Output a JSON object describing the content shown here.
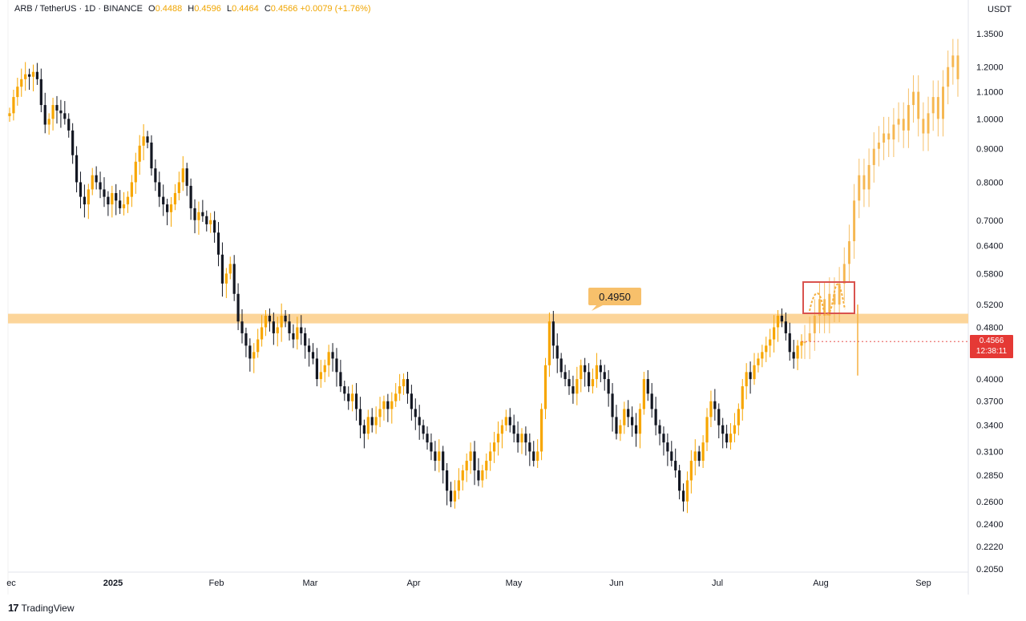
{
  "header": {
    "symbol": "ARB / TetherUS · 1D · BINANCE",
    "open_label": "O",
    "open": "0.4488",
    "high_label": "H",
    "high": "0.4596",
    "low_label": "L",
    "low": "0.4464",
    "close_label": "C",
    "close": "0.4566",
    "change": "+0.0079 (+1.76%)"
  },
  "price_axis": {
    "unit": "USDT",
    "current_price": "0.4566",
    "countdown": "12:38:11"
  },
  "footer": {
    "brand": "TradingView"
  },
  "colors": {
    "candle_up": "#f7a600",
    "candle_down": "#131722",
    "projection": "#f5b041",
    "resistance_band": "#fcd59a",
    "label_bg": "#f7c06b",
    "badge_red": "#e53935",
    "box_red": "#d9534f"
  },
  "chart_data": {
    "type": "candlestick",
    "scale": "log",
    "ylim": [
      0.2,
      1.4
    ],
    "yticks": [
      "1.3500",
      "1.2000",
      "1.1000",
      "1.0000",
      "0.9000",
      "0.8000",
      "0.7000",
      "0.6400",
      "0.5800",
      "0.5200",
      "0.4800",
      "0.4000",
      "0.3700",
      "0.3400",
      "0.3100",
      "0.2850",
      "0.2600",
      "0.2400",
      "0.2220",
      "0.2050"
    ],
    "xticks": [
      "ec",
      "2025",
      "Feb",
      "Mar",
      "Apr",
      "May",
      "Jun",
      "Jul",
      "Aug",
      "Sep"
    ],
    "resistance": {
      "value": 0.495,
      "label": "0.4950"
    },
    "closes": [
      1.02,
      1.08,
      1.12,
      1.15,
      1.17,
      1.16,
      1.18,
      1.15,
      1.05,
      0.98,
      1.0,
      1.05,
      1.03,
      1.02,
      1.0,
      0.96,
      0.88,
      0.8,
      0.76,
      0.74,
      0.78,
      0.82,
      0.8,
      0.78,
      0.76,
      0.74,
      0.77,
      0.75,
      0.73,
      0.74,
      0.76,
      0.8,
      0.86,
      0.91,
      0.94,
      0.92,
      0.84,
      0.8,
      0.76,
      0.74,
      0.72,
      0.74,
      0.77,
      0.8,
      0.84,
      0.79,
      0.73,
      0.7,
      0.72,
      0.71,
      0.69,
      0.7,
      0.67,
      0.62,
      0.56,
      0.58,
      0.6,
      0.54,
      0.49,
      0.47,
      0.45,
      0.43,
      0.44,
      0.46,
      0.48,
      0.5,
      0.49,
      0.47,
      0.48,
      0.5,
      0.49,
      0.47,
      0.46,
      0.48,
      0.47,
      0.45,
      0.44,
      0.43,
      0.4,
      0.41,
      0.42,
      0.44,
      0.43,
      0.41,
      0.39,
      0.38,
      0.37,
      0.38,
      0.36,
      0.34,
      0.33,
      0.35,
      0.34,
      0.35,
      0.36,
      0.37,
      0.36,
      0.37,
      0.38,
      0.39,
      0.4,
      0.38,
      0.36,
      0.35,
      0.34,
      0.33,
      0.32,
      0.31,
      0.3,
      0.31,
      0.29,
      0.27,
      0.26,
      0.27,
      0.28,
      0.29,
      0.3,
      0.31,
      0.29,
      0.28,
      0.29,
      0.3,
      0.31,
      0.32,
      0.33,
      0.34,
      0.35,
      0.34,
      0.33,
      0.32,
      0.33,
      0.32,
      0.31,
      0.3,
      0.31,
      0.36,
      0.42,
      0.49,
      0.45,
      0.43,
      0.41,
      0.4,
      0.39,
      0.38,
      0.4,
      0.42,
      0.41,
      0.39,
      0.4,
      0.42,
      0.41,
      0.4,
      0.38,
      0.35,
      0.33,
      0.34,
      0.36,
      0.35,
      0.34,
      0.33,
      0.36,
      0.4,
      0.38,
      0.36,
      0.34,
      0.33,
      0.32,
      0.31,
      0.3,
      0.29,
      0.27,
      0.26,
      0.28,
      0.3,
      0.31,
      0.3,
      0.32,
      0.35,
      0.37,
      0.36,
      0.34,
      0.33,
      0.32,
      0.33,
      0.34,
      0.36,
      0.39,
      0.41,
      0.4,
      0.42,
      0.43,
      0.44,
      0.45,
      0.46,
      0.48,
      0.5,
      0.49,
      0.47,
      0.44,
      0.43,
      0.45,
      0.4566
    ],
    "projection_path": [
      0.4566,
      0.47,
      0.5,
      0.53,
      0.5,
      0.54,
      0.52,
      0.56,
      0.6,
      0.65,
      0.75,
      0.82,
      0.78,
      0.85,
      0.9,
      0.92,
      0.95,
      0.93,
      0.98,
      1.0,
      0.96,
      1.05,
      1.1,
      1.0,
      0.95,
      1.02,
      1.08,
      1.0,
      1.12,
      1.2,
      1.25,
      1.15
    ]
  }
}
